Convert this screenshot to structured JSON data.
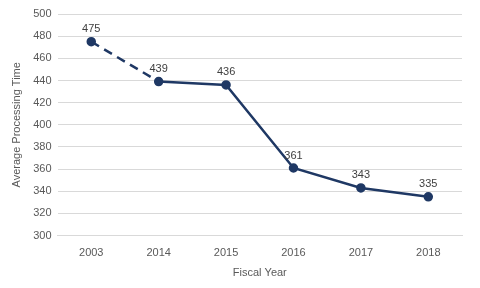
{
  "chart_data": {
    "type": "line",
    "x_label": "Fiscal Year",
    "y_label": "Average Processing Time",
    "categories": [
      "2003",
      "2014",
      "2015",
      "2016",
      "2017",
      "2018"
    ],
    "values": [
      475,
      439,
      436,
      361,
      343,
      335
    ],
    "color": "#1f3864",
    "marker": "circle",
    "ylim": [
      300,
      500
    ],
    "yticks": [
      300,
      320,
      340,
      360,
      380,
      400,
      420,
      440,
      460,
      480,
      500
    ],
    "grid": true,
    "data_labels": true
  }
}
